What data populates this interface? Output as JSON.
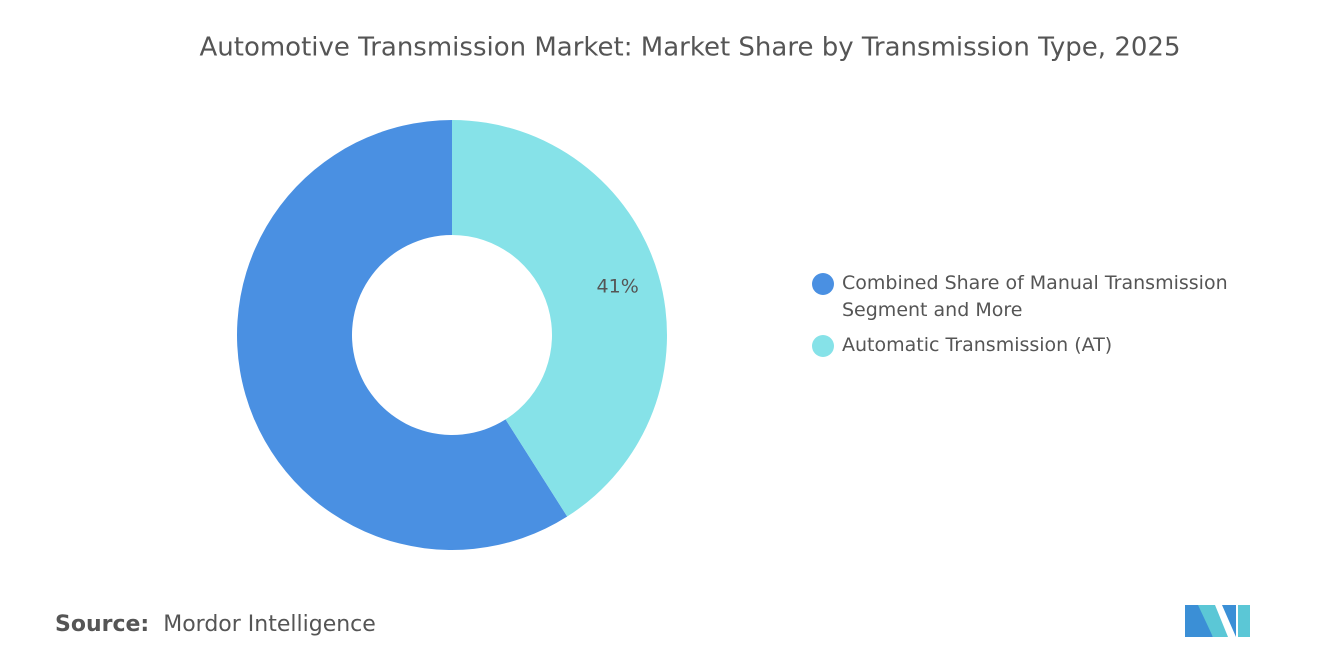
{
  "chart_data": {
    "type": "donut",
    "title": "Automotive Transmission Market: Market Share by Transmission Type, 2025",
    "categories": [
      "Combined Share of Manual Transmission Segment and More",
      "Automatic Transmission (AT)"
    ],
    "values": [
      59,
      41
    ],
    "value_labels": [
      null,
      "41%"
    ],
    "colors": [
      "#4a90e2",
      "#86e2e8"
    ],
    "legend": "right",
    "source_label": "Source:",
    "source": "Mordor Intelligence"
  }
}
